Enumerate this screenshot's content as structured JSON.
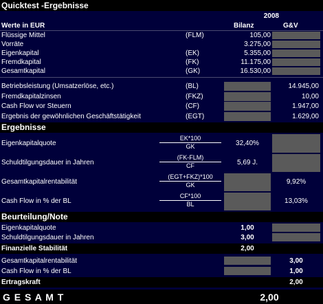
{
  "title": "Quicktest -Ergebnisse",
  "year": "2008",
  "columns": {
    "values_label": "Werte in EUR",
    "bilanz": "Bilanz",
    "gv": "G&V"
  },
  "bilanz_rows": [
    {
      "label": "Flüssige Mittel",
      "abbr": "(FLM)",
      "value": "105,00"
    },
    {
      "label": "Vorräte",
      "abbr": "",
      "value": "3.275,00"
    },
    {
      "label": "Eigenkapital",
      "abbr": "(EK)",
      "value": "5.355,00"
    },
    {
      "label": "Fremdkapital",
      "abbr": "(FK)",
      "value": "11.175,00"
    },
    {
      "label": "Gesamtkapital",
      "abbr": "(GK)",
      "value": "16.530,00"
    }
  ],
  "gv_rows": [
    {
      "label": "Betriebsleistung (Umsatzerlöse, etc.)",
      "abbr": "(BL)",
      "value": "14.945,00"
    },
    {
      "label": "Fremdkapitalzinsen",
      "abbr": "(FKZ)",
      "value": "10,00"
    },
    {
      "label": "Cash Flow vor Steuern",
      "abbr": "(CF)",
      "value": "1.947,00"
    },
    {
      "label": "Ergebnis der gewöhnlichen Geschäftstätigkeit",
      "abbr": "(EGT)",
      "value": "1.629,00"
    }
  ],
  "ergebnisse": {
    "title": "Ergebnisse",
    "rows": [
      {
        "label": "Eigenkapitalquote",
        "num": "EK*100",
        "den": "GK",
        "bilanz": "32,40%",
        "gv": ""
      },
      {
        "label": "Schuldtilgungsdauer in Jahren",
        "num": "(FK-FLM)",
        "den": "CF",
        "bilanz": "5,69 J.",
        "gv": ""
      },
      {
        "label": "Gesamtkapitalrentabilität",
        "num": "(EGT+FKZ)*100",
        "den": "GK",
        "bilanz": "",
        "gv": "9,92%"
      },
      {
        "label": "Cash Flow in % der BL",
        "num": "CF*100",
        "den": "BL",
        "bilanz": "",
        "gv": "13,03%"
      }
    ]
  },
  "beurteilung": {
    "title": "Beurteilung/Note",
    "rows": [
      {
        "label": "Eigenkapitalquote",
        "bilanz": "1,00",
        "gv": ""
      },
      {
        "label": "Schuldtilgungsdauer in Jahren",
        "bilanz": "3,00",
        "gv": ""
      }
    ],
    "stabilitaet": {
      "label": "Finanzielle Stabilität",
      "value": "2,00"
    },
    "rows2": [
      {
        "label": "Gesamtkapitalrentabilität",
        "bilanz": "",
        "gv": "3,00"
      },
      {
        "label": "Cash Flow in % der BL",
        "bilanz": "",
        "gv": "1,00"
      }
    ],
    "ertragskraft": {
      "label": "Ertragskraft",
      "value": "2,00"
    }
  },
  "gesamt": {
    "label": "G E S A M T",
    "value": "2,00"
  },
  "colors": {
    "background": "#00003a",
    "header": "#000000",
    "gray_cell": "#5a5a5a",
    "text": "#ffffff"
  }
}
